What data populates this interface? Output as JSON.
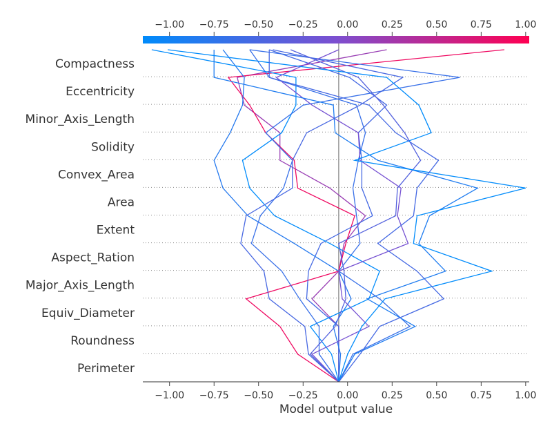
{
  "chart_data": {
    "type": "line",
    "subtype": "decision-plot",
    "xlabel": "Model output value",
    "xlim": [
      -1.15,
      1.02
    ],
    "base_value": -0.05,
    "features": [
      "Compactness",
      "Eccentricity",
      "Minor_Axis_Length",
      "Solidity",
      "Convex_Area",
      "Area",
      "Extent",
      "Aspect_Ration",
      "Major_Axis_Length",
      "Equiv_Diameter",
      "Roundness",
      "Perimeter"
    ],
    "x_ticks": [
      -1.0,
      -0.75,
      -0.5,
      -0.25,
      0.0,
      0.25,
      0.5,
      0.75,
      1.0
    ],
    "x_tick_labels": [
      "−1.00",
      "−0.75",
      "−0.50",
      "−0.25",
      "0.00",
      "0.25",
      "0.50",
      "0.75",
      "1.00"
    ],
    "colorbar": {
      "min": -1.0,
      "max": 1.0,
      "low_color": "#008bfb",
      "mid_color": "#7c4fd0",
      "high_color": "#ff0052"
    },
    "series": [
      {
        "final": 0.22,
        "values": [
          -0.05,
          -0.05,
          -0.05,
          -0.2,
          -0.05,
          -0.02,
          0.1,
          -0.1,
          -0.38,
          -0.38,
          -0.58,
          -0.62,
          0.22
        ]
      },
      {
        "final": 0.88,
        "values": [
          -0.05,
          -0.28,
          -0.38,
          -0.57,
          -0.05,
          -0.01,
          0.04,
          -0.28,
          -0.3,
          -0.46,
          -0.55,
          -0.67,
          0.88
        ]
      },
      {
        "final": -0.44,
        "values": [
          -0.05,
          -0.05,
          -0.05,
          -0.23,
          -0.22,
          -0.15,
          0.14,
          0.08,
          0.08,
          0.06,
          0.22,
          0.01,
          -0.44
        ]
      },
      {
        "final": -0.55,
        "values": [
          -0.05,
          0.03,
          0.35,
          0.18,
          -0.05,
          0.07,
          0.05,
          0.03,
          0.06,
          0.1,
          0.05,
          -0.44,
          -0.55
        ]
      },
      {
        "final": -0.7,
        "values": [
          -0.05,
          -0.04,
          -0.08,
          0.02,
          -0.05,
          -0.3,
          -0.56,
          -0.7,
          -0.75,
          -0.66,
          -0.59,
          -0.58,
          -0.7
        ]
      },
      {
        "final": -1.1,
        "values": [
          -0.05,
          -0.09,
          -0.21,
          0.12,
          0.18,
          -0.1,
          -0.41,
          -0.55,
          -0.59,
          -0.37,
          -0.29,
          -0.29,
          -1.1
        ]
      },
      {
        "final": -0.55,
        "values": [
          -0.05,
          -0.16,
          -0.16,
          -0.27,
          -0.37,
          -0.54,
          -0.49,
          -0.36,
          -0.31,
          -0.46,
          -0.25,
          0.63,
          -0.55
        ]
      },
      {
        "final": -0.42,
        "values": [
          -0.05,
          -0.22,
          -0.24,
          -0.44,
          -0.47,
          -0.6,
          -0.57,
          -0.31,
          -0.31,
          -0.23,
          0.07,
          0.31,
          -0.42
        ]
      },
      {
        "final": -0.05,
        "values": [
          -0.05,
          -0.2,
          0.12,
          -0.03,
          -0.05,
          0.34,
          0.28,
          0.3,
          0.07,
          0.06,
          -0.2,
          -0.4,
          -0.05
        ]
      },
      {
        "final": -0.32,
        "values": [
          -0.05,
          -0.21,
          -0.07,
          -0.01,
          -0.02,
          -0.05,
          0.27,
          0.28,
          0.41,
          0.32,
          0.2,
          0.06,
          -0.32
        ]
      },
      {
        "final": -0.75,
        "values": [
          -0.05,
          0.04,
          0.38,
          0.11,
          0.55,
          0.4,
          0.46,
          0.73,
          0.17,
          -0.07,
          -0.08,
          -0.75,
          -0.75
        ]
      },
      {
        "final": -1.01,
        "values": [
          -0.05,
          0.0,
          0.08,
          0.21,
          0.81,
          0.37,
          0.39,
          1.0,
          0.04,
          0.47,
          0.4,
          0.22,
          -1.01
        ]
      },
      {
        "final": -0.44,
        "values": [
          -0.05,
          0.07,
          0.18,
          0.54,
          0.39,
          0.17,
          0.37,
          0.39,
          0.51,
          0.27,
          0.12,
          -0.44,
          -0.44
        ]
      }
    ]
  }
}
